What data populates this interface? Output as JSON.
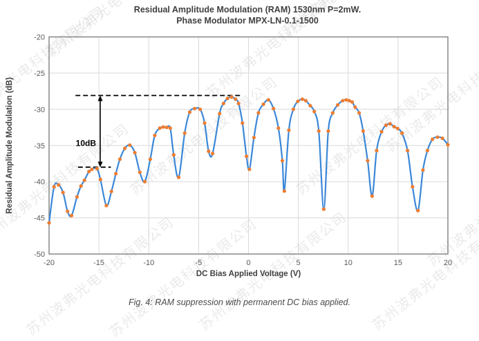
{
  "title": {
    "line1": "Residual Amplitude Modulation (RAM) 1530nm P=2mW.",
    "line2": "Phase Modulator MPX-LN-0.1-1500"
  },
  "caption": "Fig. 4: RAM suppression with permanent DC bias applied.",
  "watermark": {
    "text": "苏州波弗光电科技有限公司"
  },
  "chart_data": {
    "type": "line",
    "title": "Residual Amplitude Modulation (RAM) 1530nm P=2mW. Phase Modulator MPX-LN-0.1-1500",
    "xlabel": "DC Bias Applied Voltage (V)",
    "ylabel": "Residual Amplitude Modulation (dB)",
    "xlim": [
      -20,
      20
    ],
    "ylim": [
      -50,
      -20
    ],
    "x_ticks": [
      -20,
      -15,
      -10,
      -5,
      0,
      5,
      10,
      15,
      20
    ],
    "y_ticks": [
      -20,
      -25,
      -30,
      -35,
      -40,
      -45,
      -50
    ],
    "grid": true,
    "legend": "none",
    "series": [
      {
        "name": "RAM vs DC bias",
        "points": [
          [
            -20.0,
            -45.7
          ],
          [
            -19.5,
            -40.7
          ],
          [
            -19.05,
            -40.45
          ],
          [
            -18.6,
            -41.5
          ],
          [
            -18.15,
            -44.1
          ],
          [
            -17.75,
            -44.7
          ],
          [
            -17.2,
            -42.1
          ],
          [
            -16.8,
            -40.6
          ],
          [
            -16.45,
            -39.8
          ],
          [
            -16.0,
            -38.6
          ],
          [
            -15.7,
            -38.3
          ],
          [
            -15.2,
            -38.2
          ],
          [
            -14.85,
            -39.7
          ],
          [
            -14.25,
            -43.3
          ],
          [
            -13.75,
            -41.35
          ],
          [
            -13.3,
            -38.9
          ],
          [
            -12.9,
            -36.9
          ],
          [
            -12.4,
            -35.4
          ],
          [
            -11.9,
            -34.95
          ],
          [
            -11.4,
            -36.0
          ],
          [
            -10.9,
            -38.7
          ],
          [
            -10.4,
            -40.0
          ],
          [
            -9.85,
            -36.9
          ],
          [
            -9.4,
            -33.6
          ],
          [
            -8.9,
            -32.6
          ],
          [
            -8.55,
            -32.45
          ],
          [
            -8.2,
            -32.5
          ],
          [
            -7.85,
            -32.6
          ],
          [
            -7.5,
            -36.3
          ],
          [
            -7.0,
            -39.4
          ],
          [
            -6.4,
            -33.3
          ],
          [
            -5.9,
            -30.4
          ],
          [
            -5.4,
            -29.9
          ],
          [
            -4.85,
            -30.0
          ],
          [
            -4.4,
            -31.9
          ],
          [
            -4.0,
            -35.8
          ],
          [
            -3.6,
            -36.1
          ],
          [
            -2.9,
            -30.6
          ],
          [
            -2.5,
            -29.2
          ],
          [
            -2.1,
            -28.5
          ],
          [
            -1.7,
            -28.3
          ],
          [
            -1.3,
            -28.6
          ],
          [
            -1.0,
            -29.2
          ],
          [
            -0.6,
            -31.9
          ],
          [
            -0.2,
            -36.5
          ],
          [
            0.1,
            -38.3
          ],
          [
            0.55,
            -33.9
          ],
          [
            1.0,
            -30.5
          ],
          [
            1.5,
            -29.3
          ],
          [
            2.0,
            -28.7
          ],
          [
            2.5,
            -29.9
          ],
          [
            3.0,
            -32.6
          ],
          [
            3.4,
            -37.1
          ],
          [
            3.6,
            -41.3
          ],
          [
            4.05,
            -32.9
          ],
          [
            4.5,
            -30.0
          ],
          [
            4.95,
            -28.9
          ],
          [
            5.4,
            -28.6
          ],
          [
            5.75,
            -28.8
          ],
          [
            6.2,
            -29.5
          ],
          [
            6.6,
            -30.3
          ],
          [
            7.05,
            -33.0
          ],
          [
            7.55,
            -43.8
          ],
          [
            8.0,
            -33.0
          ],
          [
            8.45,
            -30.5
          ],
          [
            8.95,
            -29.4
          ],
          [
            9.45,
            -28.8
          ],
          [
            9.8,
            -28.7
          ],
          [
            10.1,
            -28.8
          ],
          [
            10.4,
            -29.0
          ],
          [
            10.7,
            -29.7
          ],
          [
            11.1,
            -30.5
          ],
          [
            11.5,
            -33.0
          ],
          [
            11.95,
            -37.1
          ],
          [
            12.4,
            -42.0
          ],
          [
            12.85,
            -35.7
          ],
          [
            13.35,
            -33.1
          ],
          [
            13.8,
            -32.2
          ],
          [
            14.2,
            -32.0
          ],
          [
            14.6,
            -32.4
          ],
          [
            14.95,
            -32.65
          ],
          [
            15.4,
            -33.3
          ],
          [
            15.95,
            -35.7
          ],
          [
            16.45,
            -40.7
          ],
          [
            17.0,
            -44.0
          ],
          [
            17.5,
            -38.4
          ],
          [
            17.95,
            -35.7
          ],
          [
            18.45,
            -34.15
          ],
          [
            18.95,
            -33.85
          ],
          [
            19.45,
            -34.0
          ],
          [
            20.0,
            -34.9
          ]
        ]
      }
    ],
    "annotation": {
      "label": "10dB",
      "upper_dash_db": -28.1,
      "upper_dash_x": [
        -17.35,
        -0.65
      ],
      "lower_dash_db": -38.0,
      "lower_dash_x": [
        -17.1,
        -13.8
      ],
      "arrow_x": -14.87
    },
    "colors": {
      "line": "#3A87D8",
      "marker": "#ED7D31",
      "grid": "#D9D9D9",
      "plot_border": "#7F7F7F",
      "annotation": "#000000",
      "tick_label": "#595959",
      "axis_title": "#404040",
      "title": "#3f3f3f"
    }
  }
}
